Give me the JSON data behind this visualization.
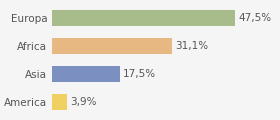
{
  "categories": [
    "Europa",
    "Africa",
    "Asia",
    "America"
  ],
  "values": [
    47.5,
    31.1,
    17.5,
    3.9
  ],
  "labels": [
    "47,5%",
    "31,1%",
    "17,5%",
    "3,9%"
  ],
  "bar_colors": [
    "#a8bb8a",
    "#e8b882",
    "#7b8fc0",
    "#f0d060"
  ],
  "background_color": "#f5f5f5",
  "xlim": [
    0,
    58
  ],
  "bar_height": 0.55,
  "label_fontsize": 7.5,
  "category_fontsize": 7.5
}
